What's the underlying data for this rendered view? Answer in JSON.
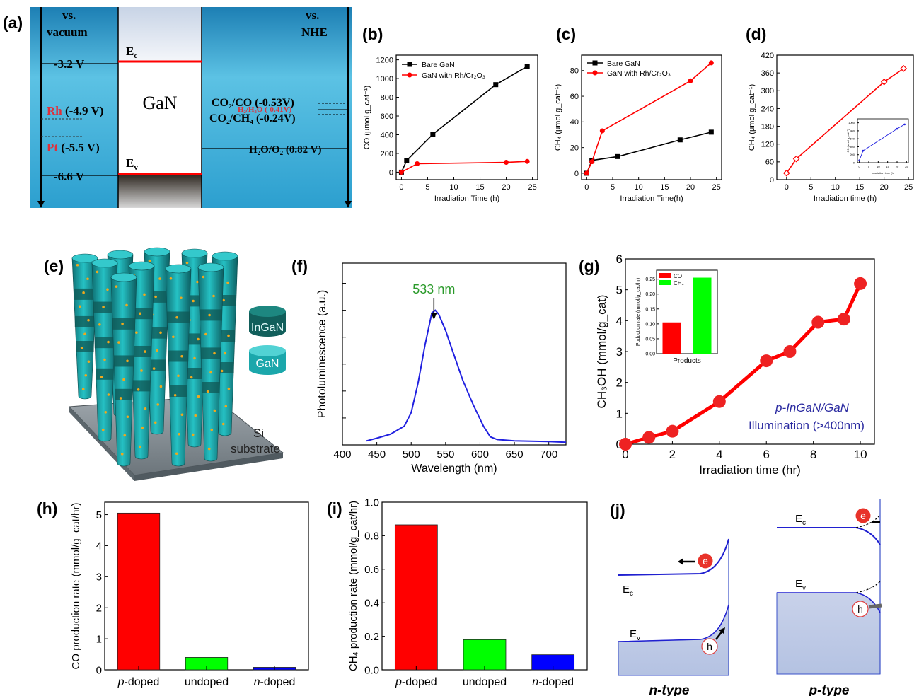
{
  "panel_labels": [
    "(a)",
    "(b)",
    "(c)",
    "(d)",
    "(e)",
    "(f)",
    "(g)",
    "(h)",
    "(i)",
    "(j)"
  ],
  "colors": {
    "black": "#000000",
    "red": "#ff0000",
    "green": "#00ff00",
    "blue": "#0000ff",
    "blue_line": "#2020e0",
    "sea": "#3fb0d8",
    "cyan": "#17a3a8",
    "dark_teal": "#10625e"
  },
  "panel_a": {
    "vacuum_header": [
      "vs.",
      "vacuum"
    ],
    "nhe_header": [
      "vs.",
      "NHE"
    ],
    "vacuum_levels": [
      "-3.2 V",
      "-6.6 V"
    ],
    "metals": [
      {
        "name": "Rh",
        "value": " (-4.9 V)"
      },
      {
        "name": "Pt",
        "value": " (-5.5 V)"
      }
    ],
    "ec_label": "E",
    "ec_sub": "c",
    "ev_label": "E",
    "ev_sub": "v",
    "material": "GaN",
    "redox": [
      "CO₂/CO (-0.53V)",
      "H₂/H₂O (-0.41V)",
      "CO₂/CH₄ (-0.24V)",
      "H₂O/O₂ (0.82 V)"
    ]
  },
  "chart_data": [
    {
      "panel": "(b)",
      "type": "line",
      "xlabel": "Irradiation Time (h)",
      "ylabel": "CO (μmol g_cat⁻¹)",
      "xlim": [
        -1,
        26
      ],
      "ylim": [
        -80,
        1250
      ],
      "xticks": [
        0,
        5,
        10,
        15,
        20,
        25
      ],
      "yticks": [
        0,
        200,
        400,
        600,
        800,
        1000,
        1200
      ],
      "legend_position": "top-left",
      "series": [
        {
          "name": "Bare GaN",
          "color": "#000000",
          "marker": "square",
          "x": [
            0,
            1,
            6,
            18,
            24
          ],
          "y": [
            0,
            125,
            405,
            935,
            1130
          ]
        },
        {
          "name": "GaN with Rh/Cr₂O₃",
          "color": "#ff0000",
          "marker": "circle",
          "x": [
            0,
            3,
            20,
            24
          ],
          "y": [
            0,
            90,
            105,
            115
          ]
        }
      ]
    },
    {
      "panel": "(c)",
      "type": "line",
      "xlabel": "Irradiation Time(h)",
      "ylabel": "CH₄ (μmol g_cat⁻¹)",
      "xlim": [
        -1,
        26
      ],
      "ylim": [
        -5,
        92
      ],
      "xticks": [
        0,
        5,
        10,
        15,
        20,
        25
      ],
      "yticks": [
        0,
        20,
        40,
        60,
        80
      ],
      "legend_position": "top-left",
      "series": [
        {
          "name": "Bare GaN",
          "color": "#000000",
          "marker": "square",
          "x": [
            0,
            1,
            6,
            18,
            24
          ],
          "y": [
            0,
            10,
            13,
            26,
            32
          ]
        },
        {
          "name": "GaN with Rh/Cr₂O₃",
          "color": "#ff0000",
          "marker": "circle",
          "x": [
            0,
            1,
            3,
            20,
            24
          ],
          "y": [
            0,
            9,
            33,
            72,
            86
          ]
        }
      ]
    },
    {
      "panel": "(d)",
      "type": "line",
      "xlabel": "Irradiation time (h)",
      "ylabel": "CH₄ (μmol g_cat⁻¹)",
      "xlim": [
        -2,
        26
      ],
      "ylim": [
        0,
        420
      ],
      "xticks": [
        0,
        5,
        10,
        15,
        20,
        25
      ],
      "yticks": [
        0,
        60,
        120,
        180,
        240,
        300,
        360,
        420
      ],
      "series": [
        {
          "name": "",
          "color": "#ff0000",
          "marker": "diamond",
          "x": [
            0,
            2,
            20,
            24
          ],
          "y": [
            22,
            70,
            330,
            375
          ]
        }
      ],
      "inset": {
        "xlabel": "Irradiation time (h)",
        "ylabel": "CO (μmol g_cat⁻¹)",
        "xlim": [
          -1,
          26
        ],
        "ylim": [
          0,
          1100
        ],
        "xticks": [
          0,
          5,
          10,
          15,
          20,
          25
        ],
        "yticks": [
          0,
          200,
          400,
          600,
          800,
          1000
        ],
        "series": [
          {
            "name": "",
            "color": "#2020e0",
            "marker": "circle",
            "x": [
              0,
              2,
              20,
              24
            ],
            "y": [
              60,
              300,
              850,
              960
            ]
          }
        ]
      }
    },
    {
      "panel": "(f)",
      "type": "line",
      "xlabel": "Wavelength (nm)",
      "ylabel": "Photoluminescence (a.u.)",
      "xlim": [
        400,
        725
      ],
      "ylim": [
        0,
        1.35
      ],
      "xticks": [
        400,
        450,
        500,
        550,
        600,
        650,
        700
      ],
      "annotation": {
        "text": "533 nm",
        "x": 533
      },
      "series": [
        {
          "name": "",
          "color": "#2020e0",
          "x": [
            435,
            450,
            470,
            490,
            500,
            510,
            520,
            530,
            535,
            540,
            550,
            560,
            575,
            590,
            605,
            615,
            625,
            650,
            700,
            725
          ],
          "y": [
            0.03,
            0.05,
            0.08,
            0.14,
            0.24,
            0.46,
            0.74,
            0.98,
            1.0,
            0.97,
            0.85,
            0.7,
            0.48,
            0.3,
            0.14,
            0.06,
            0.04,
            0.03,
            0.025,
            0.02
          ]
        }
      ]
    },
    {
      "panel": "(g)",
      "type": "line",
      "xlabel": "Irradiation time (hr)",
      "ylabel": "CH₃OH (mmol/g_cat)",
      "xlim": [
        0,
        10.6
      ],
      "ylim": [
        0,
        6
      ],
      "xticks": [
        0,
        2,
        4,
        6,
        8,
        10
      ],
      "yticks": [
        0,
        1,
        2,
        3,
        4,
        5,
        6
      ],
      "annotation": {
        "line1": "p-InGaN/GaN",
        "line2": "Illumination (>400nm)"
      },
      "series": [
        {
          "name": "",
          "color": "#ff0000",
          "marker": "circle",
          "x": [
            0,
            1,
            2,
            4,
            6,
            7,
            8.2,
            9.3,
            10
          ],
          "y": [
            0,
            0.22,
            0.42,
            1.38,
            2.7,
            3.0,
            3.95,
            4.05,
            5.2
          ]
        }
      ],
      "inset": {
        "type": "bar",
        "xlabel": "Products",
        "ylabel": "Poduction rate (mmol/g_cat/hr)",
        "ylim": [
          0,
          0.28
        ],
        "yticks": [
          0.0,
          0.05,
          0.1,
          0.15,
          0.2,
          0.25
        ],
        "categories": [
          "CO",
          "CH₄"
        ],
        "values": [
          0.105,
          0.255
        ],
        "colors": [
          "#ff0000",
          "#00ff00"
        ]
      }
    },
    {
      "panel": "(h)",
      "type": "bar",
      "ylabel": "CO production rate (mmol/g_cat/hr)",
      "ylim": [
        0,
        5.4
      ],
      "yticks": [
        0,
        1,
        2,
        3,
        4,
        5
      ],
      "categories": [
        "p-doped",
        "undoped",
        "n-doped"
      ],
      "values": [
        5.05,
        0.4,
        0.08
      ],
      "colors": [
        "#ff0000",
        "#00ff00",
        "#0000ff"
      ]
    },
    {
      "panel": "(i)",
      "type": "bar",
      "ylabel": "CH₄ production rate (mmol/g_cat/hr)",
      "ylim": [
        0,
        1.0
      ],
      "yticks": [
        0.0,
        0.2,
        0.4,
        0.6,
        0.8,
        1.0
      ],
      "categories": [
        "p-doped",
        "undoped",
        "n-doped"
      ],
      "values": [
        0.865,
        0.18,
        0.09
      ],
      "colors": [
        "#ff0000",
        "#00ff00",
        "#0000ff"
      ]
    }
  ],
  "panel_e": {
    "legend": [
      "InGaN",
      "GaN"
    ],
    "substrate": [
      "Si",
      "substrate"
    ]
  },
  "panel_j": {
    "n_type": {
      "caption": "n-type",
      "ec": "E",
      "ec_sub": "c",
      "ev": "E",
      "ev_sub": "v",
      "electron": "e",
      "hole": "h"
    },
    "p_type": {
      "caption": "p-type",
      "ec": "E",
      "ec_sub": "c",
      "ev": "E",
      "ev_sub": "v",
      "electron": "e",
      "hole": "h"
    }
  }
}
